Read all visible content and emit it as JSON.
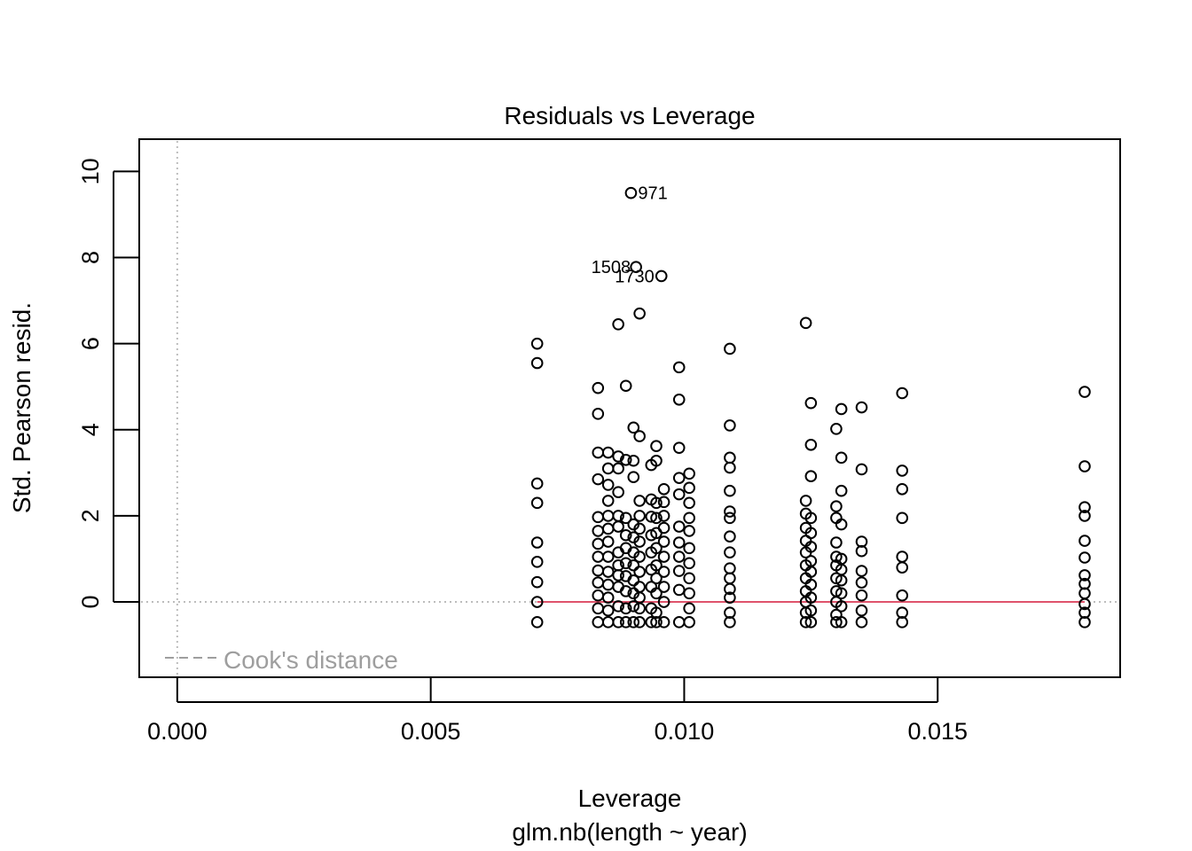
{
  "chart_data": {
    "type": "scatter",
    "title": "Residuals vs Leverage",
    "xlabel": "Leverage",
    "xsublabel": "glm.nb(length ~ year)",
    "ylabel": "Std. Pearson resid.",
    "xlim": [
      -0.00075,
      0.0186
    ],
    "ylim": [
      -1.75,
      10.75
    ],
    "x_ticks": [
      0.0,
      0.005,
      0.01,
      0.015
    ],
    "x_tick_labels": [
      "0.000",
      "0.005",
      "0.010",
      "0.015"
    ],
    "y_ticks": [
      0,
      2,
      4,
      6,
      8,
      10
    ],
    "y_tick_labels": [
      "0",
      "2",
      "4",
      "6",
      "8",
      "10"
    ],
    "grid": false,
    "reference_lines": [
      {
        "orientation": "vertical",
        "value": 0,
        "style": "dotted",
        "color": "#bdbdbd"
      },
      {
        "orientation": "horizontal",
        "value": 0,
        "style": "dotted",
        "color": "#bdbdbd"
      }
    ],
    "smooth_line": {
      "color": "#df536b",
      "x": [
        0.0071,
        0.0179
      ],
      "y": [
        0.0,
        0.0
      ]
    },
    "legend": {
      "position": "bottom-left",
      "entries": [
        {
          "label": "Cook's distance",
          "style": "dashed",
          "color": "#9e9e9e"
        }
      ]
    },
    "labeled_points": [
      {
        "label": "971",
        "x": 0.00895,
        "y": 9.5
      },
      {
        "label": "1508",
        "x": 0.00905,
        "y": 7.78
      },
      {
        "label": "1730",
        "x": 0.00955,
        "y": 7.57
      }
    ],
    "series": [
      {
        "x": 0.0071,
        "y": [
          6.0,
          5.55,
          2.75,
          2.3,
          1.38,
          0.93,
          0.46,
          0.0,
          -0.47
        ]
      },
      {
        "x": 0.0083,
        "y": [
          4.97,
          4.37,
          3.47,
          2.85,
          1.97,
          1.65,
          1.35,
          1.05,
          0.73,
          0.45,
          0.15,
          -0.15,
          -0.47
        ]
      },
      {
        "x": 0.0085,
        "y": [
          3.47,
          3.1,
          2.72,
          2.35,
          2.0,
          1.7,
          1.4,
          1.05,
          0.7,
          0.4,
          0.1,
          -0.2,
          -0.47
        ]
      },
      {
        "x": 0.0087,
        "y": [
          6.45,
          3.38,
          3.1,
          2.55,
          2.0,
          1.75,
          1.15,
          0.85,
          0.62,
          0.35,
          -0.1,
          -0.47
        ]
      },
      {
        "x": 0.00885,
        "y": [
          5.02,
          3.3,
          1.95,
          1.55,
          1.25,
          0.9,
          0.6,
          0.25,
          -0.15,
          -0.47
        ]
      },
      {
        "x": 0.009,
        "y": [
          4.05,
          3.28,
          2.9,
          1.8,
          1.5,
          1.15,
          0.85,
          0.5,
          0.2,
          -0.1,
          -0.47
        ]
      },
      {
        "x": 0.00912,
        "y": [
          6.7,
          3.85,
          2.35,
          2.0,
          1.7,
          1.4,
          1.05,
          0.7,
          0.35,
          0.1,
          -0.15,
          -0.47
        ]
      },
      {
        "x": 0.00935,
        "y": [
          3.18,
          2.38,
          1.98,
          1.55,
          1.15,
          0.75,
          0.35,
          -0.15,
          -0.47
        ]
      },
      {
        "x": 0.00945,
        "y": [
          3.62,
          3.28,
          2.3,
          1.95,
          1.6,
          1.25,
          0.85,
          0.55,
          0.2,
          -0.25,
          -0.47
        ]
      },
      {
        "x": 0.0096,
        "y": [
          2.62,
          2.32,
          2.0,
          1.72,
          1.4,
          1.05,
          0.7,
          0.35,
          0.0,
          -0.47
        ]
      },
      {
        "x": 0.0099,
        "y": [
          5.45,
          4.7,
          3.58,
          2.88,
          2.5,
          1.75,
          1.38,
          1.05,
          0.72,
          0.28,
          -0.47
        ]
      },
      {
        "x": 0.0101,
        "y": [
          2.98,
          2.65,
          2.3,
          1.95,
          1.65,
          1.25,
          0.9,
          0.55,
          0.2,
          -0.15,
          -0.47
        ]
      },
      {
        "x": 0.0109,
        "y": [
          5.88,
          4.1,
          3.35,
          3.12,
          2.58,
          2.1,
          1.95,
          1.52,
          1.15,
          0.78,
          0.55,
          0.3,
          0.1,
          -0.25,
          -0.47
        ]
      },
      {
        "x": 0.0124,
        "y": [
          6.48,
          2.35,
          2.05,
          1.72,
          1.42,
          1.15,
          0.85,
          0.55,
          0.25,
          0.0,
          -0.25,
          -0.47
        ]
      },
      {
        "x": 0.0125,
        "y": [
          4.62,
          3.65,
          2.92,
          1.95,
          1.6,
          1.28,
          0.95,
          0.7,
          0.4,
          0.1,
          -0.2,
          -0.47
        ]
      },
      {
        "x": 0.013,
        "y": [
          4.02,
          2.22,
          1.95,
          1.38,
          1.05,
          0.85,
          0.55,
          0.25,
          0.0,
          -0.3,
          -0.47
        ]
      },
      {
        "x": 0.0131,
        "y": [
          4.48,
          3.35,
          2.58,
          1.8,
          1.0,
          0.75,
          0.5,
          0.2,
          -0.1,
          -0.47
        ]
      },
      {
        "x": 0.0135,
        "y": [
          4.52,
          3.08,
          1.4,
          1.18,
          0.72,
          0.45,
          0.15,
          -0.2,
          -0.47
        ]
      },
      {
        "x": 0.0143,
        "y": [
          4.85,
          3.05,
          2.62,
          1.95,
          1.05,
          0.8,
          0.15,
          -0.25,
          -0.47
        ]
      },
      {
        "x": 0.0179,
        "y": [
          4.88,
          3.15,
          2.2,
          2.0,
          1.42,
          1.03,
          0.62,
          0.42,
          0.2,
          -0.05,
          -0.25,
          -0.47
        ]
      }
    ]
  }
}
